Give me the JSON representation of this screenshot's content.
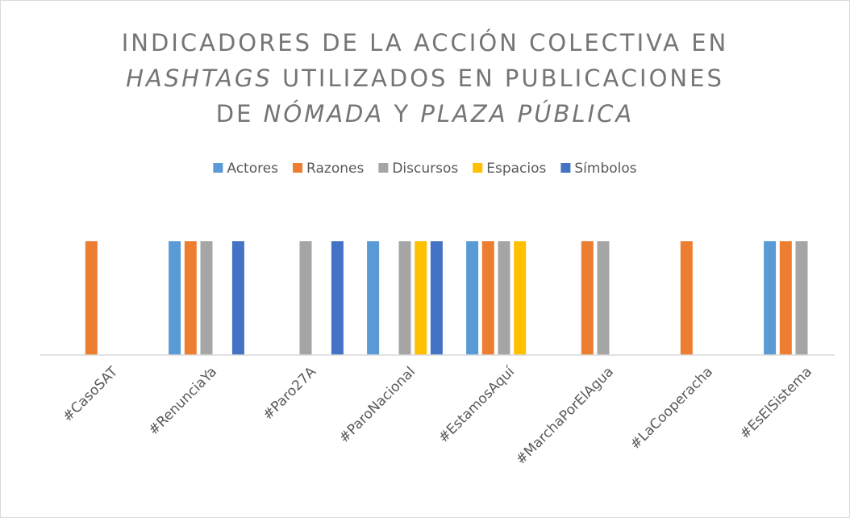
{
  "chart_data": {
    "type": "bar",
    "title": [
      [
        {
          "text": "INDICADORES DE LA ACCIÓN COLECTIVA EN",
          "italic": false
        }
      ],
      [
        {
          "text": "HASHTAGS",
          "italic": true
        },
        {
          "text": " UTILIZADOS EN PUBLICACIONES",
          "italic": false
        }
      ],
      [
        {
          "text": "DE ",
          "italic": false
        },
        {
          "text": "NÓMADA",
          "italic": true
        },
        {
          "text": " Y ",
          "italic": false
        },
        {
          "text": "PLAZA PÚBLICA",
          "italic": true
        }
      ]
    ],
    "categories": [
      "#CasoSAT",
      "#RenunciaYa",
      "#Paro27A",
      "#ParoNacional",
      "#EstamosAquí",
      "#MarchaPorElAgua",
      "#LaCooperacha",
      "#EsElSistema"
    ],
    "series": [
      {
        "name": "Actores",
        "color": "#5b9bd5",
        "values": [
          0,
          1,
          0,
          1,
          1,
          0,
          0,
          1
        ]
      },
      {
        "name": "Razones",
        "color": "#ed7d31",
        "values": [
          1,
          1,
          0,
          0,
          1,
          1,
          1,
          1
        ]
      },
      {
        "name": "Discursos",
        "color": "#a5a5a5",
        "values": [
          0,
          1,
          1,
          1,
          1,
          1,
          0,
          1
        ]
      },
      {
        "name": "Espacios",
        "color": "#ffc000",
        "values": [
          0,
          0,
          0,
          1,
          1,
          0,
          0,
          0
        ]
      },
      {
        "name": "Símbolos",
        "color": "#4472c4",
        "values": [
          0,
          1,
          1,
          1,
          0,
          0,
          0,
          0
        ]
      }
    ],
    "ylim": [
      0,
      1
    ],
    "legend": "top"
  }
}
